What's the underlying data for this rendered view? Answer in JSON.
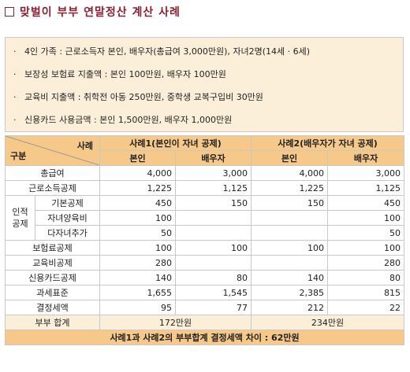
{
  "title": "맞벌이 부부 연말정산 계산 사례",
  "info_lines": [
    "4인 가족 : 근로소득자 본인, 배우자(총급여 3,000만원), 자녀2명(14세 · 6세)",
    "보장성 보험료 지출액 : 본인 100만원, 배우자 100만원",
    "교육비 지출액 : 취학전 아동 250만원, 중학생 교복구입비 30만원",
    "신용카드 사용금액 : 본인 1,500만원, 배우자 1,000만원"
  ],
  "bullet": "·",
  "table": {
    "corner_top": "사례",
    "corner_bottom": "구분",
    "case1": "사례1(본인이 자녀 공제)",
    "case2": "사례2(배우자가 자녀 공제)",
    "self": "본인",
    "spouse": "배우자",
    "group_label": "인적\n공제",
    "rows": [
      {
        "label": "총급여",
        "v": [
          "4,000",
          "3,000",
          "4,000",
          "3,000"
        ]
      },
      {
        "label": "근로소득공제",
        "v": [
          "1,225",
          "1,125",
          "1,225",
          "1,125"
        ]
      },
      {
        "label": "기본공제",
        "v": [
          "450",
          "150",
          "150",
          "450"
        ]
      },
      {
        "label": "자녀양육비",
        "v": [
          "100",
          "",
          "",
          "100"
        ]
      },
      {
        "label": "다자녀추가",
        "v": [
          "50",
          "",
          "",
          "50"
        ]
      },
      {
        "label": "보험료공제",
        "v": [
          "100",
          "100",
          "100",
          "100"
        ]
      },
      {
        "label": "교육비공제",
        "v": [
          "280",
          "",
          "",
          "280"
        ]
      },
      {
        "label": "신용카드공제",
        "v": [
          "140",
          "80",
          "140",
          "80"
        ]
      },
      {
        "label": "과세표준",
        "v": [
          "1,655",
          "1,545",
          "2,385",
          "815"
        ]
      },
      {
        "label": "결정세액",
        "v": [
          "95",
          "77",
          "212",
          "22"
        ]
      }
    ],
    "sum_label": "부부 합계",
    "sum_case1": "172만원",
    "sum_case2": "234만원",
    "footer": "사례1과 사례2의 부부합계 결정세액 차이 : 62만원"
  }
}
